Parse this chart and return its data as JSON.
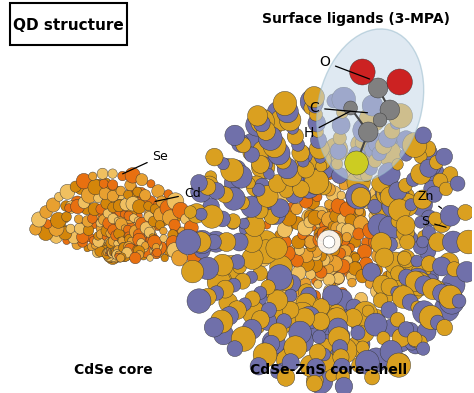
{
  "title": "QD structure",
  "bg_color": "#ffffff",
  "cdse_core_label": "CdSe core",
  "coreshell_label": "CdSe-ZnS core-shell",
  "ligand_title": "Surface ligands (3-MPA)",
  "figsize": [
    4.74,
    3.93
  ],
  "dpi": 100,
  "color_cd_light": "#F0C060",
  "color_cd_dark": "#D4860A",
  "color_se_orange": "#E87010",
  "color_zn_gold": "#DAA020",
  "color_s_purple": "#7070AA",
  "color_O_red": "#CC2222",
  "color_C_gray": "#808080",
  "color_H_lightgray": "#AAAAAA",
  "color_S_yellow": "#CCCC22",
  "ellipse_fill": "#C5D8E8",
  "ellipse_alpha": 0.55
}
